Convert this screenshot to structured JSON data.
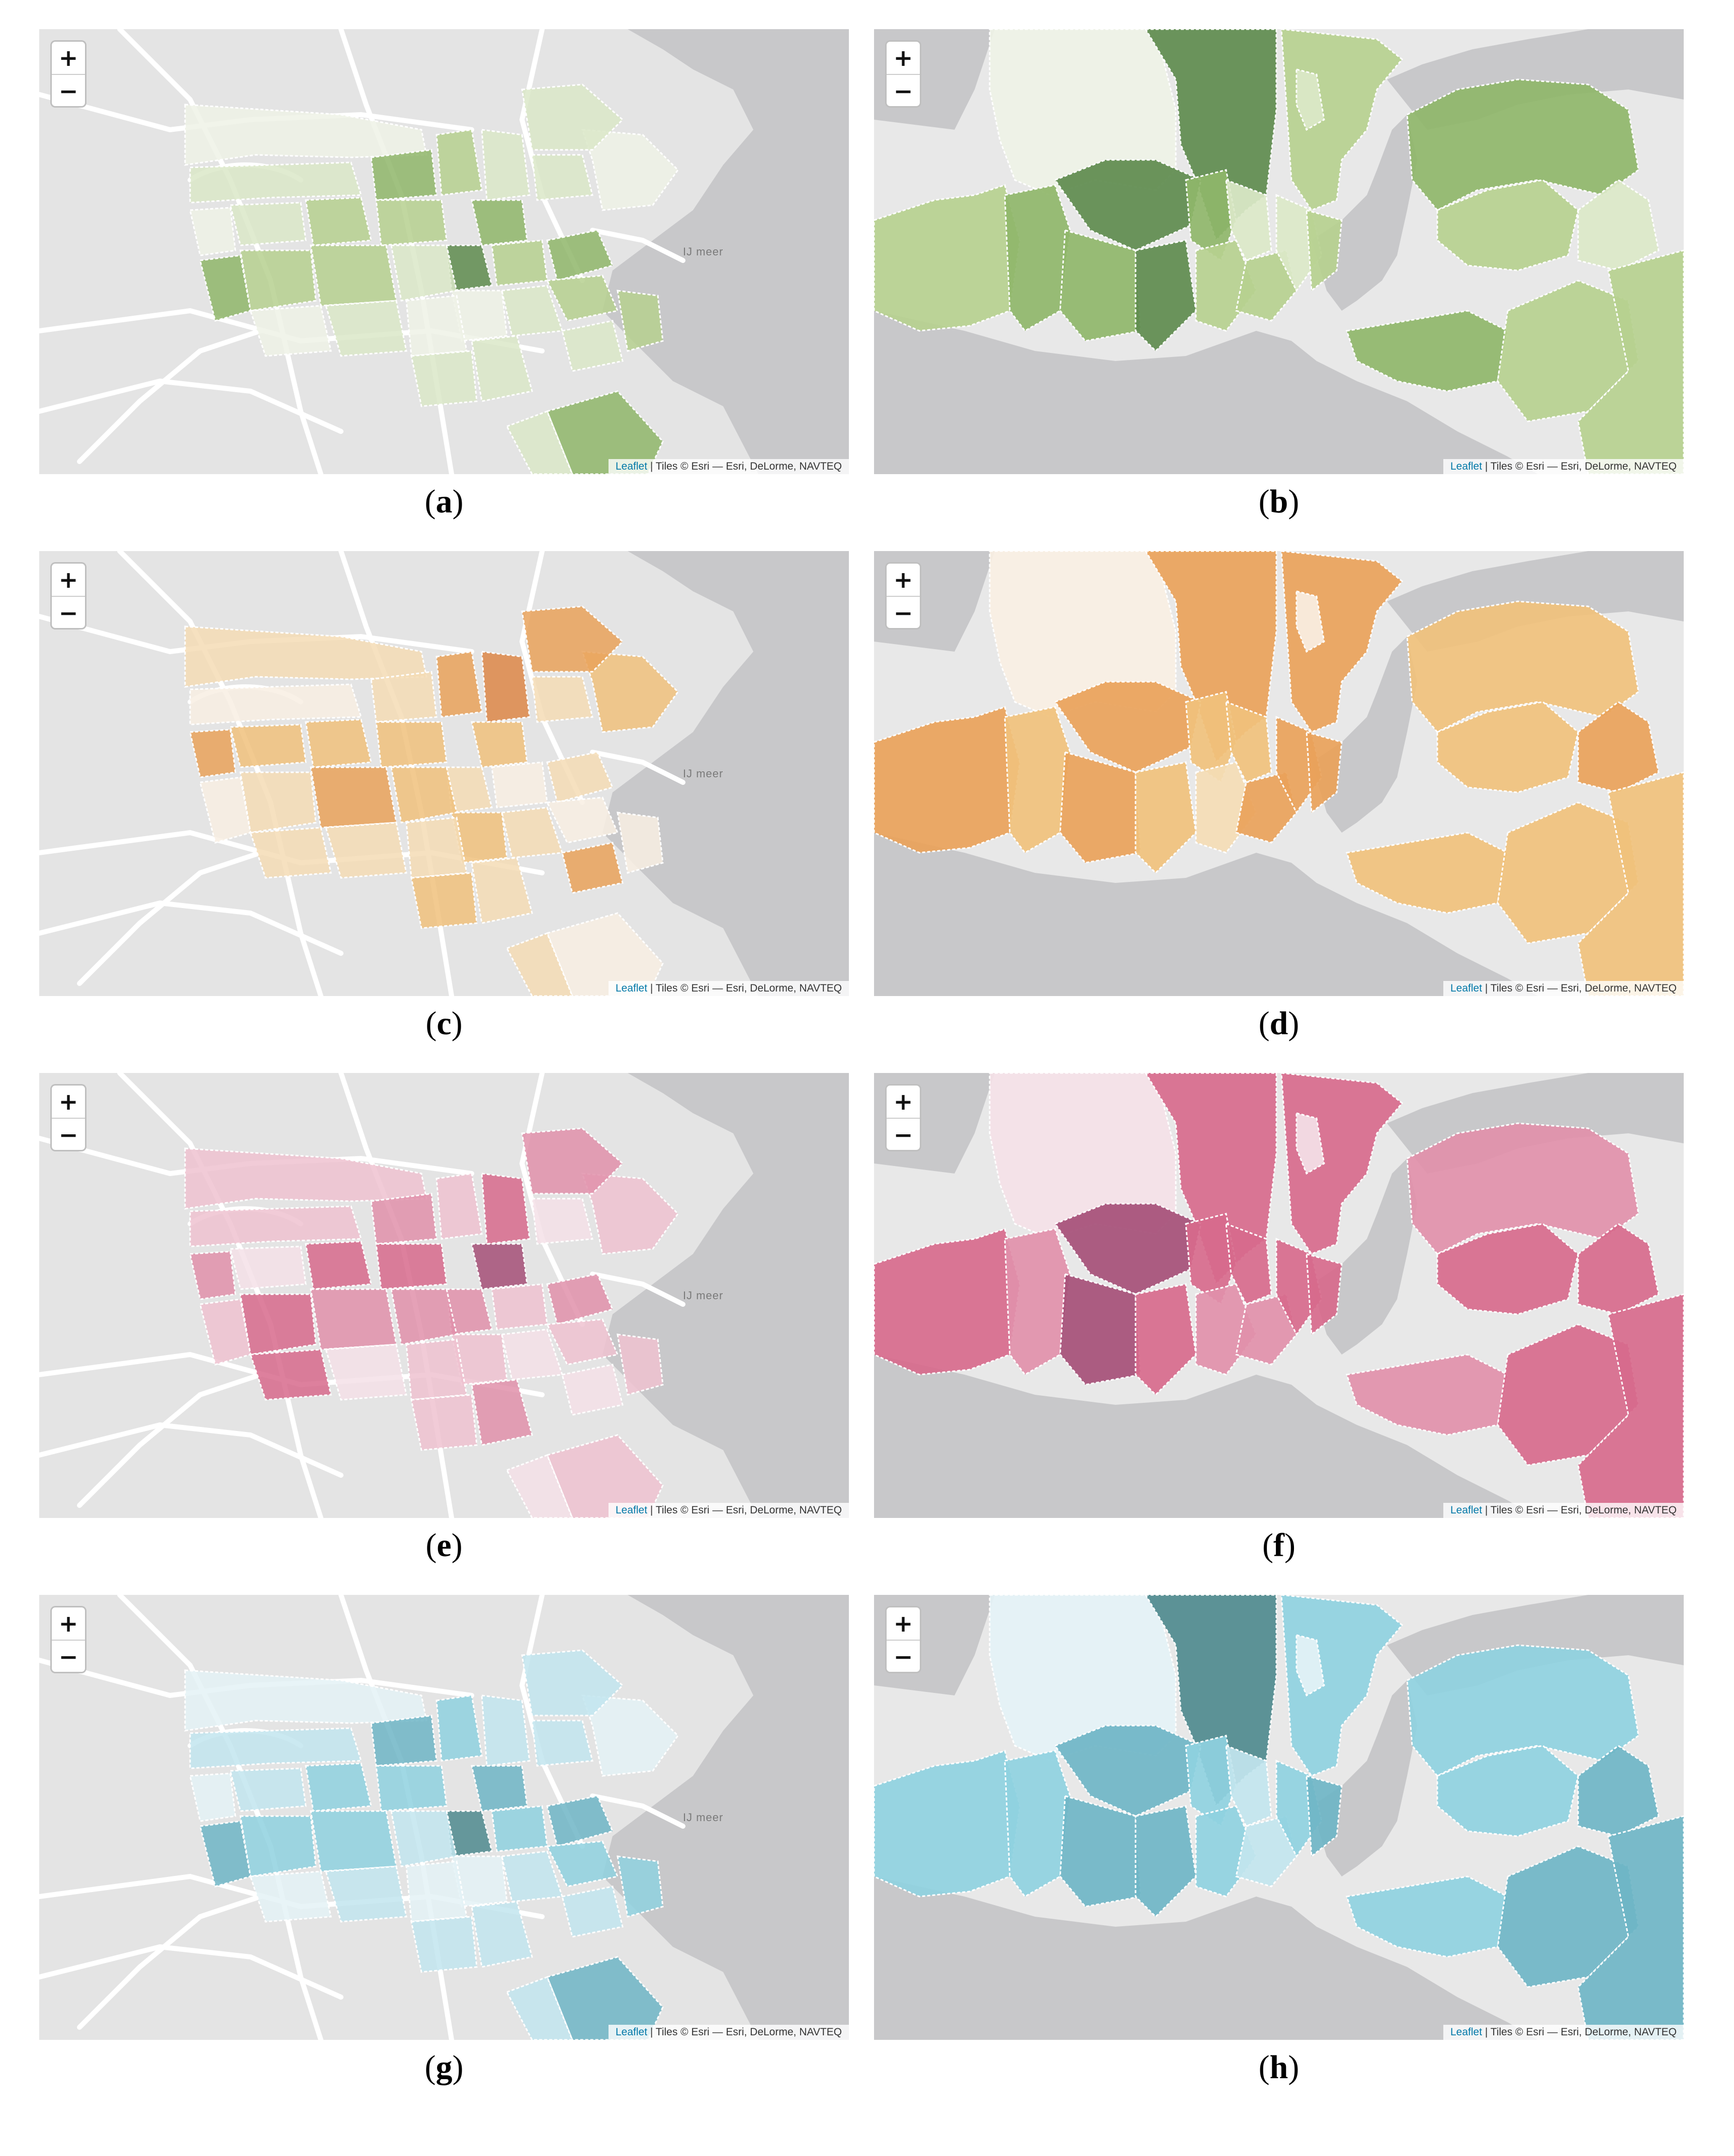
{
  "zoom": {
    "in_label": "+",
    "out_label": "−"
  },
  "attribution": {
    "leaflet_link": "Leaflet",
    "tiles_text": " | Tiles © Esri — Esri, DeLorme, NAVTEQ"
  },
  "amsterdam_water_label": "IJ meer",
  "panels": [
    {
      "id": "a",
      "caption_open": "(",
      "caption_letter": "a",
      "caption_close": ")",
      "city": "amsterdam",
      "palette": [
        "#eef2e6",
        "#dbe8c8",
        "#b6d08f",
        "#8fb66a",
        "#5e8b4e"
      ],
      "color_scheme": "green"
    },
    {
      "id": "b",
      "caption_open": "(",
      "caption_letter": "b",
      "caption_close": ")",
      "city": "istanbul",
      "palette": [
        "#eef2e6",
        "#dbe8c8",
        "#b6d08f",
        "#8fb66a",
        "#5e8b4e"
      ],
      "color_scheme": "green"
    },
    {
      "id": "c",
      "caption_open": "(",
      "caption_letter": "c",
      "caption_close": ")",
      "city": "amsterdam",
      "palette": [
        "#f8efe3",
        "#f4dcb5",
        "#f0c17c",
        "#e9a25a",
        "#dd8748"
      ],
      "color_scheme": "orange"
    },
    {
      "id": "d",
      "caption_open": "(",
      "caption_letter": "d",
      "caption_close": ")",
      "city": "istanbul",
      "palette": [
        "#f8efe3",
        "#f4dcb5",
        "#f0c17c",
        "#e9a25a",
        "#dd8748"
      ],
      "color_scheme": "orange"
    },
    {
      "id": "e",
      "caption_open": "(",
      "caption_letter": "e",
      "caption_close": ")",
      "city": "amsterdam",
      "palette": [
        "#f4e1e7",
        "#eec2d0",
        "#e190aa",
        "#d76a8c",
        "#a54f77"
      ],
      "color_scheme": "pink"
    },
    {
      "id": "f",
      "caption_open": "(",
      "caption_letter": "f",
      "caption_close": ")",
      "city": "istanbul",
      "palette": [
        "#f4e1e7",
        "#eec2d0",
        "#e190aa",
        "#d76a8c",
        "#a54f77"
      ],
      "color_scheme": "pink"
    },
    {
      "id": "g",
      "caption_open": "(",
      "caption_letter": "g",
      "caption_close": ")",
      "city": "amsterdam",
      "palette": [
        "#e4f2f6",
        "#c2e5ee",
        "#8fd1df",
        "#6fb5c6",
        "#4f8a8e"
      ],
      "color_scheme": "teal"
    },
    {
      "id": "h",
      "caption_open": "(",
      "caption_letter": "h",
      "caption_close": ")",
      "city": "istanbul",
      "palette": [
        "#e4f2f6",
        "#c2e5ee",
        "#8fd1df",
        "#6fb5c6",
        "#4f8a8e"
      ],
      "color_scheme": "teal"
    }
  ],
  "region_levels": {
    "amsterdam": [
      0,
      1,
      1,
      0,
      2,
      3,
      2,
      1,
      3,
      4,
      2,
      1,
      0,
      1,
      2,
      3,
      2,
      1,
      0,
      1,
      2,
      2,
      3,
      1,
      0,
      1,
      1,
      2,
      1,
      0,
      3,
      1
    ],
    "istanbul": {
      "a": [
        0,
        4,
        2,
        1,
        2,
        3,
        4,
        3,
        4,
        3,
        2,
        1,
        2,
        1,
        2,
        3,
        2,
        1,
        3,
        2,
        2
      ],
      "c": [
        0,
        3,
        3,
        0,
        3,
        2,
        3,
        3,
        2,
        2,
        1,
        2,
        3,
        3,
        3,
        2,
        2,
        3,
        2,
        2,
        2
      ],
      "e": [
        0,
        3,
        3,
        0,
        3,
        2,
        4,
        4,
        3,
        3,
        2,
        3,
        2,
        3,
        3,
        2,
        3,
        3,
        2,
        3,
        3
      ],
      "g": [
        0,
        4,
        2,
        0,
        2,
        2,
        3,
        3,
        3,
        2,
        2,
        1,
        1,
        2,
        3,
        2,
        2,
        3,
        2,
        3,
        3
      ]
    }
  }
}
